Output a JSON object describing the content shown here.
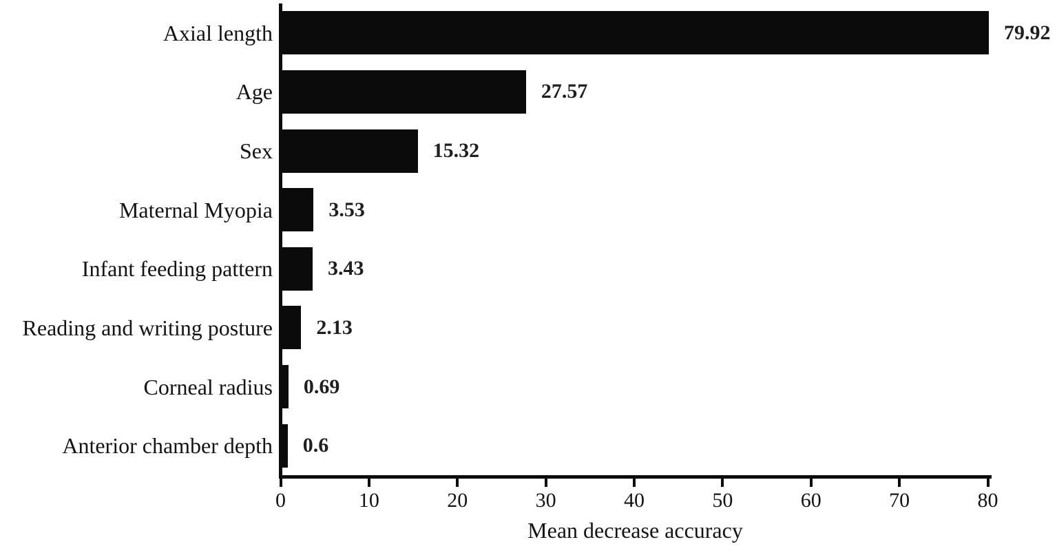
{
  "chart_data": {
    "type": "bar",
    "orientation": "horizontal",
    "title": "",
    "xlabel": "Mean decrease accuracy",
    "ylabel": "",
    "categories": [
      "Axial length",
      "Age",
      "Sex",
      "Maternal Myopia",
      "Infant feeding pattern",
      "Reading and writing posture",
      "Corneal radius",
      "Anterior chamber depth"
    ],
    "values": [
      79.92,
      27.57,
      15.32,
      3.53,
      3.43,
      2.13,
      0.69,
      0.6
    ],
    "value_labels": [
      "79.92",
      "27.57",
      "15.32",
      "3.53",
      "3.43",
      "2.13",
      "0.69",
      "0.6"
    ],
    "xlim": [
      0,
      80
    ],
    "x_ticks": [
      0,
      10,
      20,
      30,
      40,
      50,
      60,
      70,
      80
    ],
    "grid": false,
    "legend": null,
    "bar_color": "#0b0b0b",
    "background": "#ffffff"
  }
}
